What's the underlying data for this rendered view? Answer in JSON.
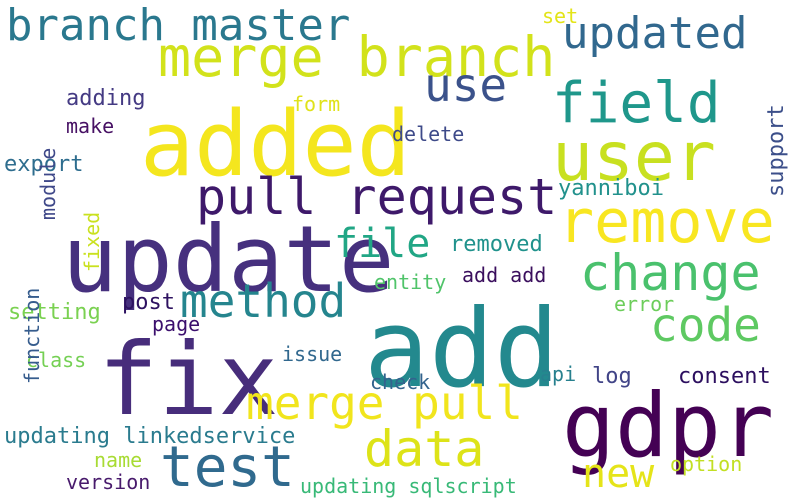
{
  "words": [
    {
      "text": "add",
      "color": "#23898e"
    },
    {
      "text": "added",
      "color": "#f4e61e"
    },
    {
      "text": "update",
      "color": "#46307e"
    },
    {
      "text": "fix",
      "color": "#472d7b"
    },
    {
      "text": "gdpr",
      "color": "#440154"
    },
    {
      "text": "user",
      "color": "#c8e020"
    },
    {
      "text": "merge branch",
      "color": "#d2e21b"
    },
    {
      "text": "branch master",
      "color": "#2a788e"
    },
    {
      "text": "remove",
      "color": "#f8e621"
    },
    {
      "text": "pull request",
      "color": "#3e196a"
    },
    {
      "text": "field",
      "color": "#1f978b"
    },
    {
      "text": "change",
      "color": "#4ac16d"
    },
    {
      "text": "updated",
      "color": "#31688e"
    },
    {
      "text": "test",
      "color": "#306a8e"
    },
    {
      "text": "method",
      "color": "#25858e"
    },
    {
      "text": "merge pull",
      "color": "#f1e51d"
    },
    {
      "text": "data",
      "color": "#dde318"
    },
    {
      "text": "code",
      "color": "#5ec962"
    },
    {
      "text": "use",
      "color": "#3b528b"
    },
    {
      "text": "file",
      "color": "#21a685"
    },
    {
      "text": "new",
      "color": "#e5e419"
    },
    {
      "text": "removed",
      "color": "#20928c"
    },
    {
      "text": "entity",
      "color": "#50c46a"
    },
    {
      "text": "add add",
      "color": "#3a0e5d"
    },
    {
      "text": "yanniboi",
      "color": "#21918c"
    },
    {
      "text": "post",
      "color": "#2d1160"
    },
    {
      "text": "setting",
      "color": "#7ad151"
    },
    {
      "text": "error",
      "color": "#6ccd5a"
    },
    {
      "text": "page",
      "color": "#3b0f6d"
    },
    {
      "text": "issue",
      "color": "#31688e"
    },
    {
      "text": "class",
      "color": "#75d054"
    },
    {
      "text": "check",
      "color": "#33638d"
    },
    {
      "text": "api",
      "color": "#27808e"
    },
    {
      "text": "log",
      "color": "#414487"
    },
    {
      "text": "consent",
      "color": "#2c0f5f"
    },
    {
      "text": "updating linkedservice",
      "color": "#2a7b8e"
    },
    {
      "text": "name",
      "color": "#a8db34"
    },
    {
      "text": "version",
      "color": "#481a6c"
    },
    {
      "text": "updating sqlscript",
      "color": "#38b977"
    },
    {
      "text": "option",
      "color": "#c2df23"
    },
    {
      "text": "adding",
      "color": "#443a83"
    },
    {
      "text": "make",
      "color": "#471164"
    },
    {
      "text": "form",
      "color": "#e0e21a"
    },
    {
      "text": "delete",
      "color": "#3e4a89"
    },
    {
      "text": "set",
      "color": "#e3e418"
    },
    {
      "text": "export",
      "color": "#2e6d8e"
    },
    {
      "text": "support",
      "color": "#3c4f8a"
    },
    {
      "text": "module",
      "color": "#3f4889"
    },
    {
      "text": "fixed",
      "color": "#cae11f"
    },
    {
      "text": "function",
      "color": "#365c8d"
    }
  ]
}
